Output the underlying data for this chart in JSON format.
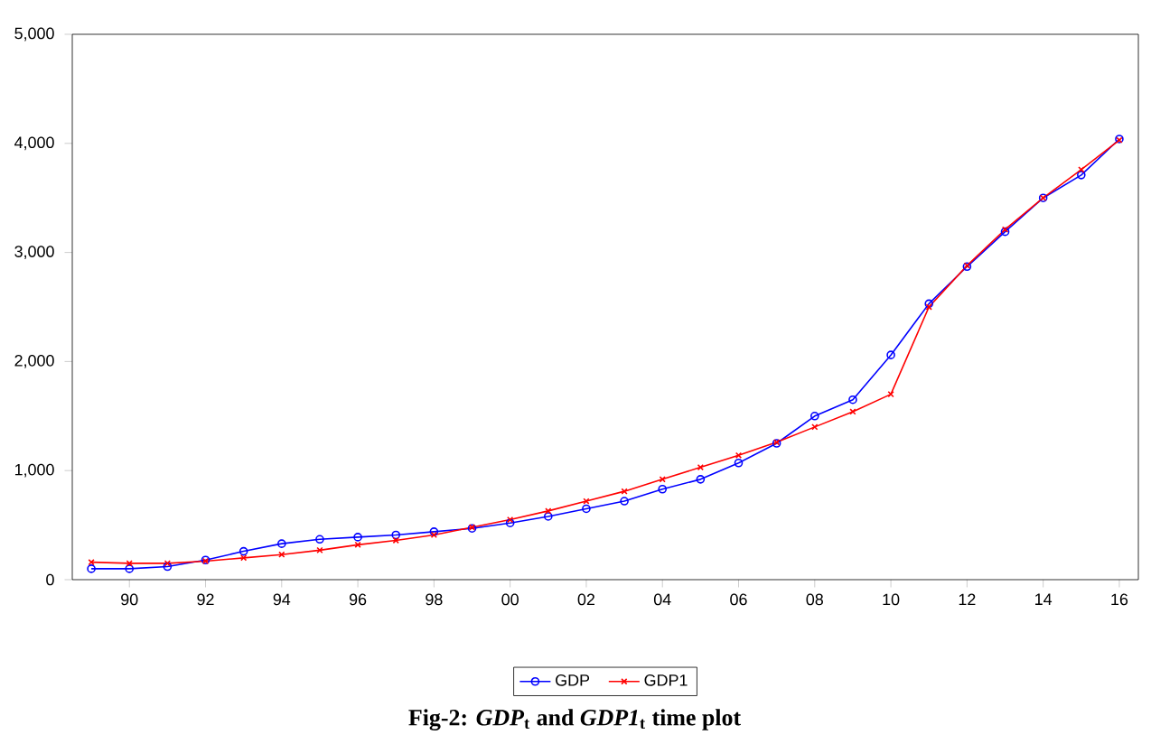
{
  "chart_data": {
    "type": "line",
    "x": [
      1989,
      1990,
      1991,
      1992,
      1993,
      1994,
      1995,
      1996,
      1997,
      1998,
      1999,
      2000,
      2001,
      2002,
      2003,
      2004,
      2005,
      2006,
      2007,
      2008,
      2009,
      2010,
      2011,
      2012,
      2013,
      2014,
      2015,
      2016
    ],
    "series": [
      {
        "name": "GDP",
        "color": "#0000ff",
        "marker": "circle",
        "values": [
          100,
          100,
          120,
          180,
          260,
          330,
          370,
          390,
          410,
          440,
          470,
          520,
          580,
          650,
          720,
          830,
          920,
          1070,
          1250,
          1500,
          1650,
          2060,
          2530,
          2870,
          3190,
          3500,
          3710,
          4040
        ]
      },
      {
        "name": "GDP1",
        "color": "#ff0000",
        "marker": "cross",
        "values": [
          160,
          150,
          150,
          170,
          200,
          230,
          270,
          320,
          360,
          410,
          480,
          550,
          630,
          720,
          810,
          920,
          1030,
          1140,
          1260,
          1400,
          1540,
          1700,
          2500,
          2880,
          3210,
          3500,
          3760,
          4030
        ]
      }
    ],
    "xlim": [
      1988.5,
      2016.5
    ],
    "xticks": [
      {
        "value": 1990,
        "label": "90"
      },
      {
        "value": 1992,
        "label": "92"
      },
      {
        "value": 1994,
        "label": "94"
      },
      {
        "value": 1996,
        "label": "96"
      },
      {
        "value": 1998,
        "label": "98"
      },
      {
        "value": 2000,
        "label": "00"
      },
      {
        "value": 2002,
        "label": "02"
      },
      {
        "value": 2004,
        "label": "04"
      },
      {
        "value": 2006,
        "label": "06"
      },
      {
        "value": 2008,
        "label": "08"
      },
      {
        "value": 2010,
        "label": "10"
      },
      {
        "value": 2012,
        "label": "12"
      },
      {
        "value": 2014,
        "label": "14"
      },
      {
        "value": 2016,
        "label": "16"
      }
    ],
    "ylim": [
      0,
      5000
    ],
    "yticks": [
      0,
      {
        "value": 1000,
        "label": "1,000"
      },
      {
        "value": 2000,
        "label": "2,000"
      },
      {
        "value": 3000,
        "label": "3,000"
      },
      {
        "value": 4000,
        "label": "4,000"
      },
      {
        "value": 5000,
        "label": "5,000"
      }
    ],
    "legend": "bottom",
    "grid": false,
    "line_style": "solid",
    "annotations": [
      "Fig-2: *GDP*$_{t}$ and *GDP1*$_{t}$ time plot"
    ]
  }
}
